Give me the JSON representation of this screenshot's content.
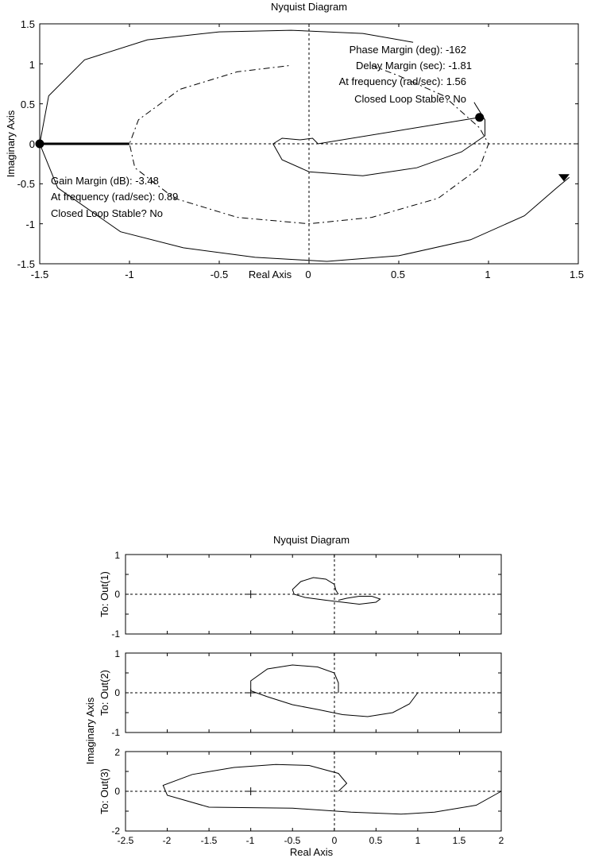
{
  "chart_data": [
    {
      "type": "line",
      "title": "Nyquist Diagram",
      "xlabel": "Real Axis",
      "ylabel": "Imaginary Axis",
      "xlim": [
        -1.5,
        1.5
      ],
      "ylim": [
        -1.5,
        1.5
      ],
      "xticks": [
        "-1.5",
        "-1",
        "-0.5",
        "0",
        "0.5",
        "1",
        "1.5"
      ],
      "yticks": [
        "1.5",
        "1",
        "0.5",
        "0",
        "-0.5",
        "-1",
        "-1.5"
      ],
      "annotations": {
        "phase": [
          "Phase Margin (deg): -162",
          "Delay Margin (sec): -1.81",
          "At frequency (rad/sec): 1.56",
          "Closed Loop Stable? No"
        ],
        "gain": [
          "Gain Margin (dB): -3.48",
          "At frequency (rad/sec): 0.89",
          "Closed Loop Stable? No"
        ]
      },
      "series": [
        {
          "style": "solid",
          "points": [
            [
              0.95,
              0.33
            ],
            [
              0.05,
              0.0
            ],
            [
              0.02,
              0.07
            ],
            [
              -0.05,
              0.05
            ],
            [
              -0.15,
              0.07
            ],
            [
              -0.2,
              0.0
            ],
            [
              -0.15,
              -0.2
            ],
            [
              0.0,
              -0.35
            ],
            [
              0.3,
              -0.4
            ],
            [
              0.6,
              -0.3
            ],
            [
              0.85,
              -0.1
            ],
            [
              0.98,
              0.1
            ],
            [
              0.98,
              0.3
            ],
            [
              0.93,
              0.48
            ],
            [
              0.92,
              0.52
            ]
          ]
        },
        {
          "style": "solid",
          "points": [
            [
              0.58,
              1.27
            ],
            [
              0.3,
              1.38
            ],
            [
              -0.1,
              1.42
            ],
            [
              -0.5,
              1.4
            ],
            [
              -0.9,
              1.3
            ],
            [
              -1.25,
              1.05
            ],
            [
              -1.45,
              0.6
            ],
            [
              -1.5,
              0.0
            ],
            [
              -1.4,
              -0.55
            ],
            [
              -1.05,
              -1.1
            ],
            [
              -0.7,
              -1.3
            ],
            [
              -0.3,
              -1.42
            ],
            [
              0.1,
              -1.47
            ],
            [
              0.5,
              -1.4
            ],
            [
              0.9,
              -1.2
            ],
            [
              1.2,
              -0.9
            ],
            [
              1.38,
              -0.55
            ],
            [
              1.45,
              -0.42
            ]
          ]
        },
        {
          "style": "dashdot",
          "points": [
            [
              0.35,
              0.98
            ],
            [
              0.5,
              0.85
            ],
            [
              0.75,
              0.6
            ],
            [
              0.95,
              0.2
            ],
            [
              1.0,
              0.0
            ],
            [
              0.95,
              -0.3
            ],
            [
              0.72,
              -0.68
            ],
            [
              0.35,
              -0.92
            ],
            [
              0.0,
              -1.0
            ],
            [
              -0.4,
              -0.92
            ],
            [
              -0.75,
              -0.68
            ],
            [
              -0.97,
              -0.3
            ],
            [
              -1.0,
              0.0
            ],
            [
              -0.95,
              0.3
            ],
            [
              -0.72,
              0.68
            ],
            [
              -0.4,
              0.9
            ],
            [
              -0.1,
              0.98
            ]
          ]
        },
        {
          "style": "thick",
          "points": [
            [
              -1.5,
              0.0
            ],
            [
              -1.0,
              0.0
            ]
          ]
        }
      ],
      "markers": [
        [
          -1.5,
          0.0
        ],
        [
          0.95,
          0.33
        ]
      ],
      "arrow": [
        1.42,
        -0.42
      ]
    },
    {
      "type": "line",
      "title": "Nyquist Diagram",
      "xlabel": "Real Axis",
      "ylabel": "Imaginary Axis",
      "xlim": [
        -2.5,
        2.0
      ],
      "xticks": [
        "-2.5",
        "-2",
        "-1.5",
        "-1",
        "-0.5",
        "0",
        "0.5",
        "1",
        "1.5",
        "2"
      ],
      "subplots": [
        {
          "ylabel": "To: Out(1)",
          "ylim": [
            -1,
            1
          ],
          "yticks": [
            "1",
            "0",
            "-1"
          ],
          "series": [
            [
              [
                0.05,
                0.0
              ],
              [
                0.02,
                0.1
              ],
              [
                0.0,
                0.25
              ],
              [
                -0.1,
                0.38
              ],
              [
                -0.25,
                0.42
              ],
              [
                -0.4,
                0.32
              ],
              [
                -0.5,
                0.12
              ],
              [
                -0.48,
                0.0
              ],
              [
                -0.35,
                -0.08
              ],
              [
                -0.1,
                -0.15
              ],
              [
                0.1,
                -0.2
              ],
              [
                0.3,
                -0.25
              ],
              [
                0.5,
                -0.2
              ],
              [
                0.55,
                -0.12
              ],
              [
                0.45,
                -0.05
              ],
              [
                0.3,
                -0.05
              ],
              [
                0.15,
                -0.1
              ],
              [
                0.05,
                -0.15
              ]
            ]
          ]
        },
        {
          "ylabel": "To: Out(2)",
          "ylim": [
            -1,
            1
          ],
          "yticks": [
            "1",
            "0",
            "-1"
          ],
          "series": [
            [
              [
                1.0,
                0.0
              ],
              [
                0.9,
                -0.28
              ],
              [
                0.7,
                -0.5
              ],
              [
                0.4,
                -0.6
              ],
              [
                0.1,
                -0.55
              ],
              [
                -0.2,
                -0.42
              ],
              [
                -0.5,
                -0.3
              ],
              [
                -0.8,
                -0.1
              ],
              [
                -1.0,
                0.05
              ],
              [
                -1.0,
                0.3
              ],
              [
                -0.8,
                0.6
              ],
              [
                -0.5,
                0.7
              ],
              [
                -0.2,
                0.65
              ],
              [
                0.0,
                0.5
              ],
              [
                0.05,
                0.25
              ],
              [
                0.05,
                0.0
              ]
            ]
          ]
        },
        {
          "ylabel": "To: Out(3)",
          "ylim": [
            -2,
            2
          ],
          "yticks": [
            "2",
            "0",
            "-2"
          ],
          "series": [
            [
              [
                2.0,
                0.0
              ],
              [
                1.7,
                -0.7
              ],
              [
                1.2,
                -1.05
              ],
              [
                0.8,
                -1.15
              ],
              [
                0.2,
                -1.05
              ],
              [
                -0.5,
                -0.85
              ],
              [
                -1.5,
                -0.8
              ],
              [
                -2.0,
                -0.2
              ],
              [
                -2.05,
                0.3
              ],
              [
                -1.7,
                0.85
              ],
              [
                -1.2,
                1.2
              ],
              [
                -0.7,
                1.35
              ],
              [
                -0.3,
                1.3
              ],
              [
                0.05,
                0.9
              ],
              [
                0.15,
                0.4
              ],
              [
                0.05,
                0.0
              ]
            ]
          ]
        }
      ]
    }
  ]
}
